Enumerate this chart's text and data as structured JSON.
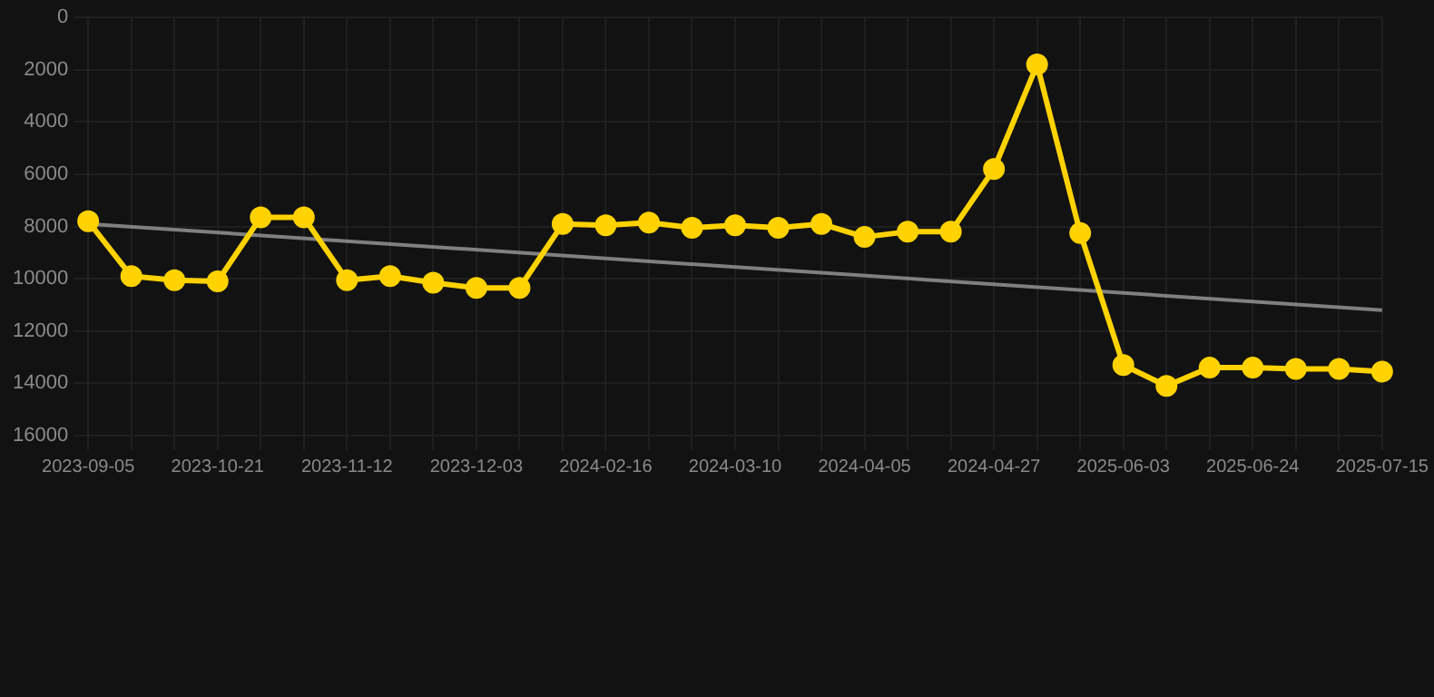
{
  "chart_data": {
    "type": "line",
    "categories": [
      "2023-09-05",
      null,
      null,
      "2023-10-21",
      null,
      null,
      "2023-11-12",
      null,
      null,
      "2023-12-03",
      null,
      null,
      "2024-02-16",
      null,
      null,
      "2024-03-10",
      null,
      null,
      "2024-04-05",
      null,
      null,
      "2024-04-27",
      null,
      null,
      "2025-06-03",
      null,
      null,
      "2025-06-24",
      null,
      null,
      "2025-07-15"
    ],
    "series": [
      {
        "color": "#ffd200",
        "marker": "circle",
        "values": [
          7800,
          9900,
          10050,
          10100,
          7650,
          7650,
          10050,
          9900,
          10150,
          10350,
          10350,
          7900,
          7950,
          7850,
          8050,
          7950,
          8050,
          7900,
          8400,
          8200,
          8200,
          5800,
          1800,
          8250,
          13300,
          14100,
          13400,
          13400,
          13450,
          13450,
          13550
        ]
      },
      {
        "type": "line",
        "color": "#808080",
        "marker": "none",
        "values": [
          7900,
          null,
          null,
          null,
          null,
          null,
          null,
          null,
          null,
          null,
          null,
          null,
          null,
          null,
          null,
          null,
          null,
          null,
          null,
          null,
          null,
          null,
          null,
          null,
          null,
          null,
          null,
          null,
          null,
          null,
          11200
        ]
      }
    ],
    "ylim": [
      16000,
      0
    ],
    "yticks": [
      0,
      2000,
      4000,
      6000,
      8000,
      10000,
      12000,
      14000,
      16000
    ],
    "grid": true,
    "legend": false
  }
}
